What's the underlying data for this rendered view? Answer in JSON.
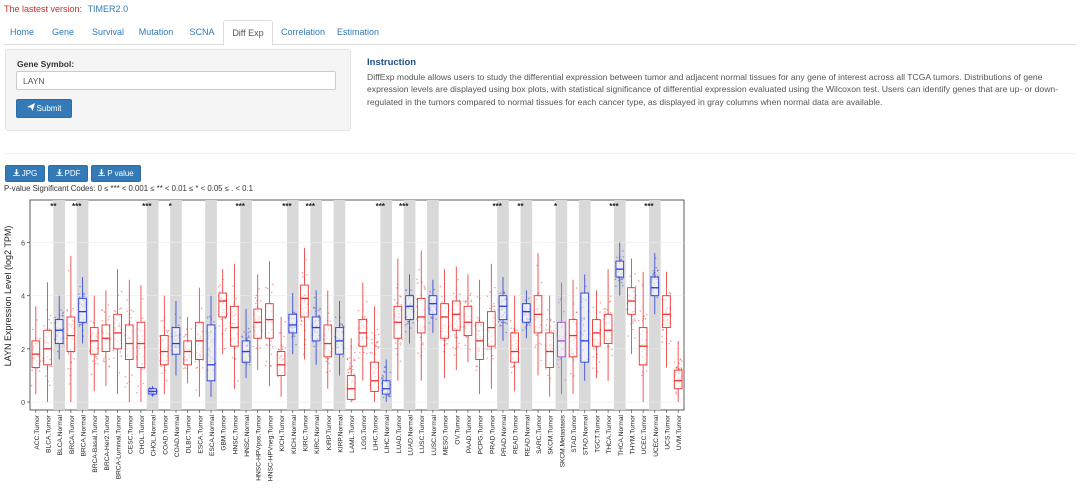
{
  "header": {
    "version_label": "The lastest version:",
    "version_link": "TIMER2.0"
  },
  "tabs": [
    {
      "label": "Home"
    },
    {
      "label": "Gene"
    },
    {
      "label": "Survival"
    },
    {
      "label": "Mutation"
    },
    {
      "label": "SCNA"
    },
    {
      "label": "Diff Exp",
      "active": true
    },
    {
      "label": "Correlation"
    },
    {
      "label": "Estimation"
    }
  ],
  "form": {
    "gene_label": "Gene Symbol:",
    "gene_value": "LAYN",
    "submit_label": "Submit",
    "submit_icon": "paper-plane-icon"
  },
  "instruction": {
    "title": "Instruction",
    "text": "DiffExp module allows users to study the differential expression between tumor and adjacent normal tissues for any gene of interest across all TCGA tumors. Distributions of gene expression levels are displayed using box plots, with statistical significance of differential expression evaluated using the Wilcoxon test. Users can identify genes that are up- or down- regulated in the tumors compared to normal tissues for each cancer type, as displayed in gray columns when normal data are available."
  },
  "downloads": [
    {
      "label": "JPG",
      "icon": "download-icon"
    },
    {
      "label": "PDF",
      "icon": "download-icon"
    },
    {
      "label": "P value",
      "icon": "download-icon"
    }
  ],
  "significance_note": "P-value Significant Codes: 0 ≤ *** < 0.001 ≤ ** < 0.01 ≤ * < 0.05 ≤ . < 0.1",
  "colors": {
    "tumor": "#e8312f",
    "normal": "#2b3fd6",
    "metastasis": "#9b4fd8",
    "gray_column": "#d9d9d9",
    "link": "#337ab7"
  },
  "chart_data": {
    "type": "box",
    "ylabel": "LAYN Expression Level (log2 TPM)",
    "ylim": [
      -0.3,
      7.6
    ],
    "yticks": [
      0,
      2,
      4,
      6
    ],
    "categories": [
      {
        "label": "ACC.Tumor",
        "median": 1.8,
        "q1": 1.3,
        "q3": 2.3,
        "low": 0.3,
        "high": 3.6,
        "kind": "tumor"
      },
      {
        "label": "BLCA.Tumor",
        "median": 2.0,
        "q1": 1.4,
        "q3": 2.7,
        "low": 0.0,
        "high": 4.5,
        "kind": "tumor",
        "sig": "**"
      },
      {
        "label": "BLCA.Normal",
        "median": 2.7,
        "q1": 2.2,
        "q3": 3.1,
        "low": 1.6,
        "high": 4.0,
        "kind": "normal",
        "gray": true
      },
      {
        "label": "BRCA.Tumor",
        "median": 2.5,
        "q1": 1.9,
        "q3": 3.2,
        "low": 0.0,
        "high": 5.5,
        "kind": "tumor",
        "sig": "***"
      },
      {
        "label": "BRCA.Normal",
        "median": 3.4,
        "q1": 3.0,
        "q3": 3.9,
        "low": 2.2,
        "high": 4.7,
        "kind": "normal",
        "gray": true
      },
      {
        "label": "BRCA-Basal.Tumor",
        "median": 2.3,
        "q1": 1.8,
        "q3": 2.8,
        "low": 0.4,
        "high": 4.0,
        "kind": "tumor"
      },
      {
        "label": "BRCA-Her2.Tumor",
        "median": 2.4,
        "q1": 1.9,
        "q3": 2.9,
        "low": 0.6,
        "high": 4.2,
        "kind": "tumor"
      },
      {
        "label": "BRCA-Luminal.Tumor",
        "median": 2.6,
        "q1": 2.0,
        "q3": 3.3,
        "low": 0.3,
        "high": 5.0,
        "kind": "tumor"
      },
      {
        "label": "CESC.Tumor",
        "median": 2.2,
        "q1": 1.6,
        "q3": 2.9,
        "low": 0.0,
        "high": 4.6,
        "kind": "tumor"
      },
      {
        "label": "CHOL.Tumor",
        "median": 2.2,
        "q1": 1.3,
        "q3": 3.0,
        "low": 0.0,
        "high": 4.4,
        "kind": "tumor",
        "sig": "***"
      },
      {
        "label": "CHOL.Normal",
        "median": 0.4,
        "q1": 0.3,
        "q3": 0.5,
        "low": 0.2,
        "high": 0.6,
        "kind": "normal",
        "gray": true
      },
      {
        "label": "COAD.Tumor",
        "median": 1.9,
        "q1": 1.4,
        "q3": 2.5,
        "low": 0.3,
        "high": 4.0,
        "kind": "tumor",
        "sig": "*"
      },
      {
        "label": "COAD.Normal",
        "median": 2.2,
        "q1": 1.8,
        "q3": 2.8,
        "low": 1.0,
        "high": 3.8,
        "kind": "normal",
        "gray": true
      },
      {
        "label": "DLBC.Tumor",
        "median": 1.9,
        "q1": 1.4,
        "q3": 2.3,
        "low": 0.7,
        "high": 3.2,
        "kind": "tumor"
      },
      {
        "label": "ESCA.Tumor",
        "median": 2.3,
        "q1": 1.6,
        "q3": 3.0,
        "low": 0.2,
        "high": 4.3,
        "kind": "tumor"
      },
      {
        "label": "ESCA.Normal",
        "median": 1.4,
        "q1": 0.8,
        "q3": 2.9,
        "low": 0.2,
        "high": 4.0,
        "kind": "normal",
        "gray": true
      },
      {
        "label": "GBM.Tumor",
        "median": 3.8,
        "q1": 3.2,
        "q3": 4.1,
        "low": 1.8,
        "high": 5.0,
        "kind": "tumor"
      },
      {
        "label": "HNSC.Tumor",
        "median": 2.8,
        "q1": 2.1,
        "q3": 3.6,
        "low": 0.5,
        "high": 5.2,
        "kind": "tumor",
        "sig": "***"
      },
      {
        "label": "HNSC.Normal",
        "median": 1.9,
        "q1": 1.5,
        "q3": 2.3,
        "low": 0.9,
        "high": 3.5,
        "kind": "normal",
        "gray": true
      },
      {
        "label": "HNSC-HPVpos.Tumor",
        "median": 3.0,
        "q1": 2.4,
        "q3": 3.5,
        "low": 1.2,
        "high": 4.8,
        "kind": "tumor"
      },
      {
        "label": "HNSC-HPVneg.Tumor",
        "median": 3.1,
        "q1": 2.4,
        "q3": 3.7,
        "low": 0.6,
        "high": 5.3,
        "kind": "tumor"
      },
      {
        "label": "KICH.Tumor",
        "median": 1.4,
        "q1": 1.0,
        "q3": 1.9,
        "low": 0.2,
        "high": 3.2,
        "kind": "tumor",
        "sig": "***"
      },
      {
        "label": "KICH.Normal",
        "median": 2.9,
        "q1": 2.6,
        "q3": 3.3,
        "low": 1.8,
        "high": 4.1,
        "kind": "normal",
        "gray": true
      },
      {
        "label": "KIRC.Tumor",
        "median": 3.9,
        "q1": 3.2,
        "q3": 4.4,
        "low": 1.6,
        "high": 5.8,
        "kind": "tumor",
        "sig": "***"
      },
      {
        "label": "KIRC.Normal",
        "median": 2.8,
        "q1": 2.3,
        "q3": 3.2,
        "low": 1.4,
        "high": 4.2,
        "kind": "normal",
        "gray": true
      },
      {
        "label": "KIRP.Tumor",
        "median": 2.2,
        "q1": 1.7,
        "q3": 2.9,
        "low": 0.5,
        "high": 4.2,
        "kind": "tumor"
      },
      {
        "label": "KIRP.Normal",
        "median": 2.3,
        "q1": 1.8,
        "q3": 2.8,
        "low": 1.0,
        "high": 3.8,
        "kind": "normal",
        "gray": true
      },
      {
        "label": "LAML.Tumor",
        "median": 0.5,
        "q1": 0.1,
        "q3": 1.0,
        "low": 0.0,
        "high": 2.4,
        "kind": "tumor"
      },
      {
        "label": "LGG.Tumor",
        "median": 2.6,
        "q1": 2.1,
        "q3": 3.1,
        "low": 0.8,
        "high": 4.5,
        "kind": "tumor"
      },
      {
        "label": "LIHC.Tumor",
        "median": 0.8,
        "q1": 0.4,
        "q3": 1.5,
        "low": 0.0,
        "high": 3.6,
        "kind": "tumor",
        "sig": "***"
      },
      {
        "label": "LIHC.Normal",
        "median": 0.5,
        "q1": 0.3,
        "q3": 0.8,
        "low": 0.0,
        "high": 1.6,
        "kind": "normal",
        "gray": true
      },
      {
        "label": "LUAD.Tumor",
        "median": 3.0,
        "q1": 2.4,
        "q3": 3.6,
        "low": 0.8,
        "high": 5.4,
        "kind": "tumor",
        "sig": "***"
      },
      {
        "label": "LUAD.Normal",
        "median": 3.6,
        "q1": 3.1,
        "q3": 4.0,
        "low": 2.2,
        "high": 4.8,
        "kind": "normal",
        "gray": true
      },
      {
        "label": "LUSC.Tumor",
        "median": 3.2,
        "q1": 2.6,
        "q3": 3.9,
        "low": 0.8,
        "high": 5.7,
        "kind": "tumor"
      },
      {
        "label": "LUSC.Normal",
        "median": 3.7,
        "q1": 3.3,
        "q3": 4.0,
        "low": 2.6,
        "high": 4.6,
        "kind": "normal",
        "gray": true
      },
      {
        "label": "MESO.Tumor",
        "median": 3.2,
        "q1": 2.4,
        "q3": 3.7,
        "low": 0.9,
        "high": 5.0,
        "kind": "tumor"
      },
      {
        "label": "OV.Tumor",
        "median": 3.3,
        "q1": 2.7,
        "q3": 3.8,
        "low": 1.2,
        "high": 5.1,
        "kind": "tumor"
      },
      {
        "label": "PAAD.Tumor",
        "median": 3.0,
        "q1": 2.5,
        "q3": 3.6,
        "low": 1.5,
        "high": 4.8,
        "kind": "tumor"
      },
      {
        "label": "PCPG.Tumor",
        "median": 2.3,
        "q1": 1.6,
        "q3": 3.0,
        "low": 0.3,
        "high": 4.6,
        "kind": "tumor"
      },
      {
        "label": "PRAD.Tumor",
        "median": 2.8,
        "q1": 2.1,
        "q3": 3.4,
        "low": 0.5,
        "high": 5.2,
        "kind": "tumor",
        "sig": "***"
      },
      {
        "label": "PRAD.Normal",
        "median": 3.6,
        "q1": 3.1,
        "q3": 4.0,
        "low": 2.3,
        "high": 4.7,
        "kind": "normal",
        "gray": true
      },
      {
        "label": "READ.Tumor",
        "median": 1.9,
        "q1": 1.5,
        "q3": 2.6,
        "low": 0.4,
        "high": 4.0,
        "kind": "tumor",
        "sig": "**"
      },
      {
        "label": "READ.Normal",
        "median": 3.4,
        "q1": 3.0,
        "q3": 3.7,
        "low": 2.4,
        "high": 4.2,
        "kind": "normal",
        "gray": true
      },
      {
        "label": "SARC.Tumor",
        "median": 3.3,
        "q1": 2.6,
        "q3": 4.0,
        "low": 1.0,
        "high": 5.6,
        "kind": "tumor"
      },
      {
        "label": "SKCM.Tumor",
        "median": 1.9,
        "q1": 1.3,
        "q3": 2.6,
        "low": 0.2,
        "high": 4.0,
        "kind": "tumor",
        "sig": "*"
      },
      {
        "label": "SKCM.Metastasis",
        "median": 2.3,
        "q1": 1.7,
        "q3": 3.0,
        "low": 0.3,
        "high": 4.5,
        "kind": "metastasis",
        "gray": true
      },
      {
        "label": "STAD.Tumor",
        "median": 2.5,
        "q1": 1.7,
        "q3": 3.1,
        "low": 0.3,
        "high": 4.6,
        "kind": "tumor"
      },
      {
        "label": "STAD.Normal",
        "median": 2.3,
        "q1": 1.5,
        "q3": 4.1,
        "low": 0.8,
        "high": 4.8,
        "kind": "normal",
        "gray": true
      },
      {
        "label": "TGCT.Tumor",
        "median": 2.6,
        "q1": 2.1,
        "q3": 3.1,
        "low": 0.9,
        "high": 4.2,
        "kind": "tumor"
      },
      {
        "label": "THCA.Tumor",
        "median": 2.7,
        "q1": 2.2,
        "q3": 3.3,
        "low": 0.8,
        "high": 5.0,
        "kind": "tumor",
        "sig": "***"
      },
      {
        "label": "THCA.Normal",
        "median": 5.0,
        "q1": 4.7,
        "q3": 5.3,
        "low": 4.0,
        "high": 6.0,
        "kind": "normal",
        "gray": true
      },
      {
        "label": "THYM.Tumor",
        "median": 3.8,
        "q1": 3.3,
        "q3": 4.3,
        "low": 1.8,
        "high": 5.4,
        "kind": "tumor"
      },
      {
        "label": "UCEC.Tumor",
        "median": 2.1,
        "q1": 1.4,
        "q3": 2.8,
        "low": 0.0,
        "high": 4.9,
        "kind": "tumor",
        "sig": "***"
      },
      {
        "label": "UCEC.Normal",
        "median": 4.3,
        "q1": 4.0,
        "q3": 4.7,
        "low": 3.3,
        "high": 5.6,
        "kind": "normal",
        "gray": true
      },
      {
        "label": "UCS.Tumor",
        "median": 3.3,
        "q1": 2.8,
        "q3": 4.0,
        "low": 1.3,
        "high": 4.9,
        "kind": "tumor"
      },
      {
        "label": "UVM.Tumor",
        "median": 0.8,
        "q1": 0.5,
        "q3": 1.2,
        "low": 0.0,
        "high": 2.3,
        "kind": "tumor"
      }
    ]
  }
}
